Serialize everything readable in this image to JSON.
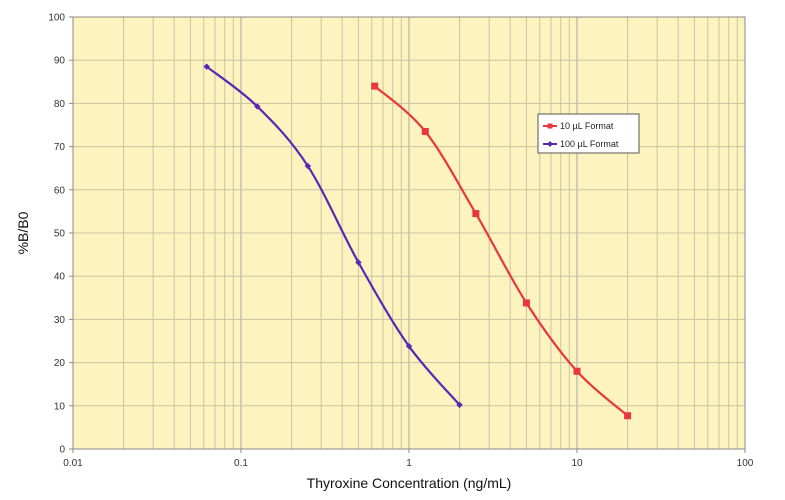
{
  "chart_data": {
    "type": "line",
    "xscale": "log",
    "xlim": [
      0.01,
      100
    ],
    "ylim": [
      0,
      100
    ],
    "xticks": [
      "0.01",
      "0.1",
      "1",
      "10",
      "100"
    ],
    "yticks": [
      "0",
      "10",
      "20",
      "30",
      "40",
      "50",
      "60",
      "70",
      "80",
      "90",
      "100"
    ],
    "xlabel": "Thyroxine Concentration (ng/mL)",
    "ylabel": "%B/B0",
    "grid": true,
    "legend_position": "right",
    "background": "#fdf3bf",
    "series": [
      {
        "name": "10 µL Format",
        "color": "#e8373e",
        "marker": "square",
        "x": [
          0.625,
          1.25,
          2.5,
          5,
          10,
          20
        ],
        "y": [
          84,
          73.5,
          54.5,
          33.8,
          18,
          7.7
        ]
      },
      {
        "name": "100 µL Format",
        "color": "#5b26b4",
        "marker": "diamond",
        "x": [
          0.0625,
          0.125,
          0.25,
          0.5,
          1,
          2
        ],
        "y": [
          88.5,
          79.3,
          65.5,
          43.2,
          23.8,
          10.2
        ]
      }
    ]
  }
}
